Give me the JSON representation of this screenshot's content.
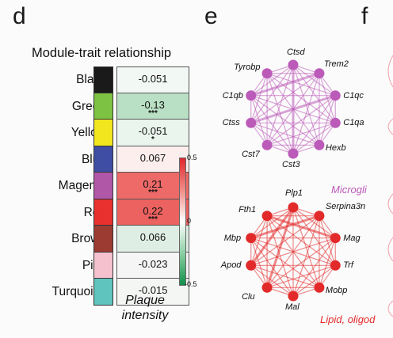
{
  "panels": {
    "d": "d",
    "e": "e",
    "f": "f"
  },
  "heatmap": {
    "title": "Module-trait relationship",
    "xlabel_line1": "Plaque",
    "xlabel_line2": "intensity",
    "colorbar": {
      "max": "0.5",
      "mid": "0",
      "min": "-0.5"
    },
    "rows": [
      {
        "module": "Black",
        "color": "#1a1a1a",
        "value": "-0.051",
        "stars": "",
        "cell_color": "#f2f8f4"
      },
      {
        "module": "Green",
        "color": "#7dc242",
        "value": "-0.13",
        "stars": "***",
        "cell_color": "#b9e0c4"
      },
      {
        "module": "Yellow",
        "color": "#f2e61e",
        "value": "-0.051",
        "stars": "*",
        "cell_color": "#eaf5ee"
      },
      {
        "module": "Blue",
        "color": "#3f4ea3",
        "value": "0.067",
        "stars": "",
        "cell_color": "#fbeeed"
      },
      {
        "module": "Magenta",
        "color": "#b057a8",
        "value": "0.21",
        "stars": "***",
        "cell_color": "#ee6a68"
      },
      {
        "module": "Red",
        "color": "#e8302f",
        "value": "0.22",
        "stars": "***",
        "cell_color": "#ec6260"
      },
      {
        "module": "Brown",
        "color": "#9b3b32",
        "value": "0.066",
        "stars": "",
        "cell_color": "#dfeee4"
      },
      {
        "module": "Pink",
        "color": "#f5c1cf",
        "value": "-0.023",
        "stars": "",
        "cell_color": "#f5f5f5"
      },
      {
        "module": "Turquoise",
        "color": "#5fc4bd",
        "value": "-0.015",
        "stars": "",
        "cell_color": "#f4f6f4"
      }
    ]
  },
  "networks": [
    {
      "title": "Microgli",
      "color": "#bb5ab8",
      "nodes": [
        "Ctsd",
        "Trem2",
        "C1qc",
        "C1qa",
        "Hexb",
        "Cst3",
        "Cst7",
        "Ctss",
        "C1qb",
        "Tyrobp"
      ]
    },
    {
      "title": "Lipid, oligod",
      "color": "#e32a2a",
      "nodes": [
        "Plp1",
        "Serpina3n",
        "Mag",
        "Trf",
        "Mobp",
        "Mal",
        "Clu",
        "Apod",
        "Mbp",
        "Fth1"
      ]
    }
  ]
}
